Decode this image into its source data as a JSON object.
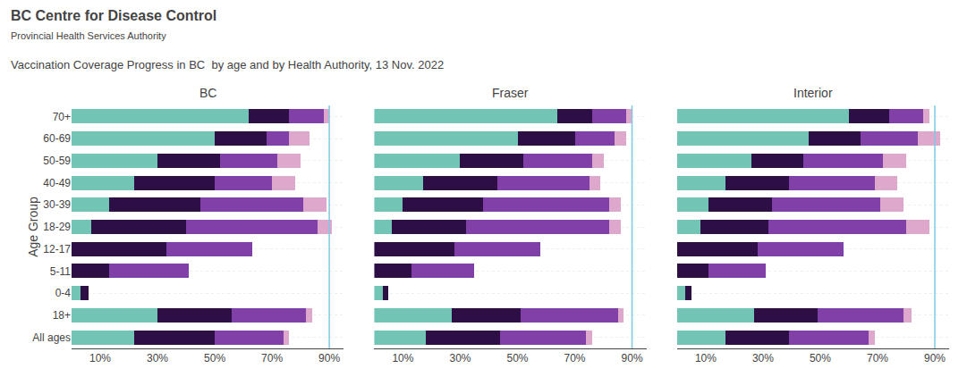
{
  "title": "Vaccination Coverage Progress in BC  by age and by Health Authority, 13 Nov. 2022",
  "annotations": [
    "BC Centre for Disease Control",
    "Provincial Health Services Authority"
  ],
  "chart_data": [
    {
      "type": "bar",
      "title": "BC",
      "orientation": "horizontal",
      "stacked": true,
      "grid": true,
      "ylabel": "Age Group",
      "categories": [
        "70+",
        "60-69",
        "50-59",
        "40-49",
        "30-39",
        "18-29",
        "12-17",
        "5-11",
        "0-4",
        "18+",
        "All ages"
      ],
      "series": [
        {
          "color": "#72c4b5",
          "values": [
            62,
            50,
            30,
            22,
            13,
            7,
            0,
            0,
            3,
            30,
            22
          ]
        },
        {
          "color": "#2d0e45",
          "values": [
            14,
            18,
            22,
            28,
            32,
            33,
            33,
            13,
            3,
            26,
            28
          ]
        },
        {
          "color": "#8040a8",
          "values": [
            12,
            8,
            20,
            20,
            36,
            46,
            30,
            28,
            0,
            26,
            24
          ]
        },
        {
          "color": "#dda8cc",
          "values": [
            2,
            7,
            8,
            8,
            8,
            5,
            0,
            0,
            0,
            2,
            2
          ]
        }
      ],
      "xlim": [
        0,
        95
      ],
      "xticks": [
        {
          "value": 10,
          "label": "10%"
        },
        {
          "value": 30,
          "label": "30%"
        },
        {
          "value": 50,
          "label": "50%"
        },
        {
          "value": 70,
          "label": "70%"
        },
        {
          "value": 90,
          "label": "90%"
        }
      ],
      "vline": {
        "x": 90,
        "color": "#7ec8e3"
      }
    },
    {
      "type": "bar",
      "title": "Fraser",
      "orientation": "horizontal",
      "stacked": true,
      "grid": true,
      "tick_labels": "x",
      "categories": [
        "70+",
        "60-69",
        "50-59",
        "40-49",
        "30-39",
        "18-29",
        "12-17",
        "5-11",
        "0-4",
        "18+",
        "All ages"
      ],
      "series": [
        {
          "color": "#72c4b5",
          "values": [
            64,
            50,
            30,
            17,
            10,
            6,
            0,
            0,
            3,
            27,
            18
          ]
        },
        {
          "color": "#2d0e45",
          "values": [
            12,
            20,
            22,
            26,
            28,
            26,
            28,
            13,
            2,
            24,
            26
          ]
        },
        {
          "color": "#8040a8",
          "values": [
            12,
            14,
            24,
            32,
            44,
            50,
            30,
            22,
            0,
            34,
            30
          ]
        },
        {
          "color": "#dda8cc",
          "values": [
            2,
            4,
            4,
            4,
            4,
            4,
            0,
            0,
            0,
            2,
            2
          ]
        }
      ],
      "xlim": [
        0,
        95
      ],
      "xticks": [
        {
          "value": 10,
          "label": "10%"
        },
        {
          "value": 30,
          "label": "30%"
        },
        {
          "value": 50,
          "label": "50%"
        },
        {
          "value": 70,
          "label": "70%"
        },
        {
          "value": 90,
          "label": "90%"
        }
      ],
      "vline": {
        "x": 90,
        "color": "#7ec8e3"
      }
    },
    {
      "type": "bar",
      "title": "Interior",
      "orientation": "horizontal",
      "stacked": true,
      "grid": true,
      "tick_labels": "x",
      "categories": [
        "70+",
        "60-69",
        "50-59",
        "40-49",
        "30-39",
        "18-29",
        "12-17",
        "5-11",
        "0-4",
        "18+",
        "All ages"
      ],
      "series": [
        {
          "color": "#72c4b5",
          "values": [
            60,
            46,
            26,
            17,
            11,
            8,
            0,
            0,
            3,
            27,
            17
          ]
        },
        {
          "color": "#2d0e45",
          "values": [
            14,
            18,
            18,
            22,
            22,
            24,
            28,
            11,
            2,
            22,
            22
          ]
        },
        {
          "color": "#8040a8",
          "values": [
            12,
            20,
            28,
            30,
            38,
            48,
            30,
            20,
            0,
            30,
            28
          ]
        },
        {
          "color": "#dda8cc",
          "values": [
            2,
            8,
            8,
            8,
            8,
            8,
            0,
            0,
            0,
            3,
            2
          ]
        }
      ],
      "xlim": [
        0,
        95
      ],
      "xticks": [
        {
          "value": 10,
          "label": "10%"
        },
        {
          "value": 30,
          "label": "30%"
        },
        {
          "value": 50,
          "label": "50%"
        },
        {
          "value": 70,
          "label": "70%"
        },
        {
          "value": 90,
          "label": "90%"
        }
      ],
      "vline": {
        "x": 90,
        "color": "#7ec8e3"
      }
    }
  ]
}
